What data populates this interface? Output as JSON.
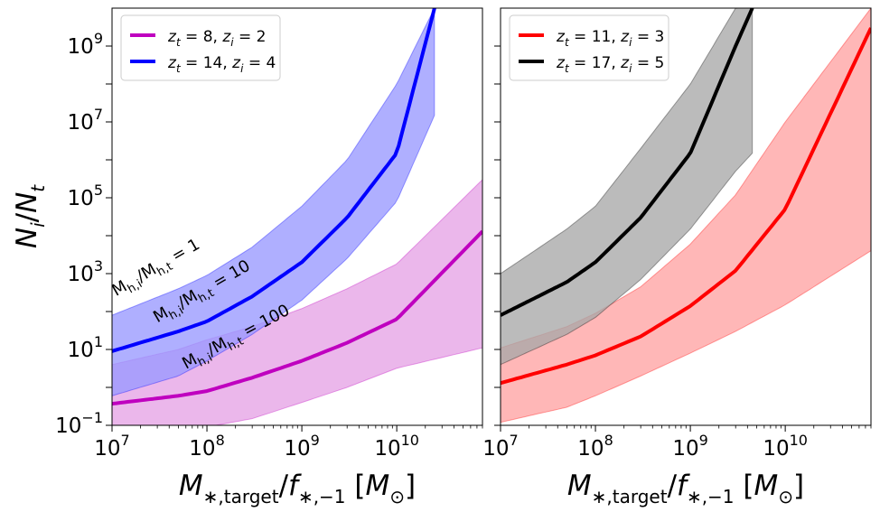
{
  "chart_data": {
    "type": "line",
    "ylabel": "N_i/N_t",
    "xlabel": "M_{*,target}/f_{*,-1} [M_⊙]",
    "x_scale": "log",
    "y_scale": "log",
    "xlim": [
      10000000,
      80000000000
    ],
    "ylim": [
      0.1,
      10000000000
    ],
    "x_ticks": [
      {
        "value": 10000000,
        "base": "10",
        "exp": "7"
      },
      {
        "value": 100000000,
        "base": "10",
        "exp": "8"
      },
      {
        "value": 1000000000,
        "base": "10",
        "exp": "9"
      },
      {
        "value": 10000000000,
        "base": "10",
        "exp": "10"
      }
    ],
    "y_ticks": [
      {
        "value": 0.1,
        "base": "10",
        "exp": "−1"
      },
      {
        "value": 10,
        "base": "10",
        "exp": "1"
      },
      {
        "value": 1000,
        "base": "10",
        "exp": "3"
      },
      {
        "value": 100000,
        "base": "10",
        "exp": "5"
      },
      {
        "value": 10000000,
        "base": "10",
        "exp": "7"
      },
      {
        "value": 1000000000,
        "base": "10",
        "exp": "9"
      }
    ],
    "panels": [
      {
        "name": "left",
        "legend_position": "top-left",
        "series": [
          {
            "name": "z_t = 8, z_i = 2",
            "z_t": "8",
            "z_i": "2",
            "color": "#bf00bf",
            "fill": "#e6a3e6",
            "x": [
              10000000,
              50000000,
              100000000,
              300000000,
              1000000000,
              3000000000,
              10000000000,
              80000000000
            ],
            "y": [
              0.37,
              0.6,
              0.8,
              1.8,
              5,
              15,
              63,
              13000
            ],
            "lower": [
              0.06,
              0.07,
              0.09,
              0.15,
              0.4,
              1.0,
              3.2,
              11
            ],
            "upper": [
              4,
              10,
              18,
              40,
              120,
              400,
              1800,
              300000
            ]
          },
          {
            "name": "z_t = 14, z_i = 4",
            "z_t": "14",
            "z_i": "4",
            "color": "#0000ff",
            "fill": "#9999ff",
            "x": [
              10000000,
              50000000,
              100000000,
              300000000,
              1000000000,
              3000000000,
              10000000000,
              25000000000
            ],
            "y": [
              9,
              30,
              55,
              250,
              2000,
              30000,
              1500000,
              10000000000
            ],
            "lower": [
              0.6,
              2,
              5,
              25,
              200,
              2500,
              80000,
              15000000
            ],
            "upper": [
              80,
              400,
              900,
              5000,
              60000,
              1000000,
              100000000,
              10000000000
            ]
          }
        ],
        "annotations": [
          {
            "text": "M_h,i/M_h,t = 1",
            "prefix": "M",
            "sub1": "h,i",
            "mid": "/M",
            "sub2": "h,t",
            "suffix": " = 1",
            "x": 11000000,
            "y": 250,
            "angle": 30
          },
          {
            "text": "M_h,i/M_h,t = 10",
            "prefix": "M",
            "sub1": "h,i",
            "mid": "/M",
            "sub2": "h,t",
            "suffix": " = 10",
            "x": 30000000,
            "y": 50,
            "angle": 30
          },
          {
            "text": "M_h,i/M_h,t = 100",
            "prefix": "M",
            "sub1": "h,i",
            "mid": "/M",
            "sub2": "h,t",
            "suffix": " = 100",
            "x": 60000000,
            "y": 3,
            "angle": 28
          }
        ]
      },
      {
        "name": "right",
        "legend_position": "top-left",
        "series": [
          {
            "name": "z_t = 11, z_i = 3",
            "z_t": "11",
            "z_i": "3",
            "color": "#ff0000",
            "fill": "#ffa3a3",
            "x": [
              10000000,
              50000000,
              100000000,
              300000000,
              1000000000,
              3000000000,
              10000000000,
              80000000000
            ],
            "y": [
              1.3,
              4,
              7,
              22,
              140,
              1200,
              50000,
              3000000000
            ],
            "lower": [
              0.12,
              0.3,
              0.6,
              2,
              8,
              30,
              150,
              4000
            ],
            "upper": [
              11,
              40,
              90,
              450,
              6000,
              120000,
              10000000,
              10000000000
            ]
          },
          {
            "name": "z_t = 17, z_i = 5",
            "z_t": "17",
            "z_i": "5",
            "color": "#000000",
            "fill": "#a8a8a8",
            "x": [
              10000000,
              50000000,
              100000000,
              300000000,
              1000000000,
              3000000000,
              4500000000
            ],
            "y": [
              80,
              600,
              2000,
              30000,
              1500000,
              1000000000,
              10000000000
            ],
            "lower": [
              4,
              25,
              70,
              700,
              15000,
              500000,
              1500000
            ],
            "upper": [
              1000,
              15000,
              60000,
              2000000,
              100000000,
              10000000000,
              10000000000
            ]
          }
        ]
      }
    ]
  }
}
